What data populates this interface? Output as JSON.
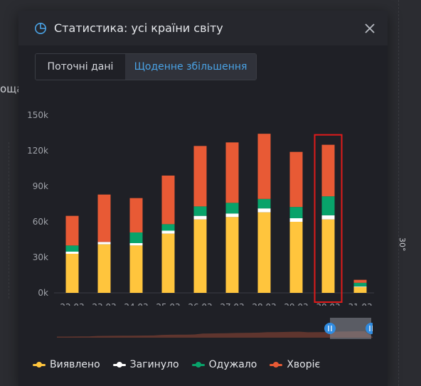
{
  "modal": {
    "title": "Статистика: усі країни світу",
    "tabs": [
      {
        "label": "Поточні дані",
        "active": false
      },
      {
        "label": "Щоденне збільшення",
        "active": true
      }
    ]
  },
  "map_labels": {
    "left_fragment": "оща",
    "right_fragment": "30°"
  },
  "colors": {
    "detected": "#ffc53d",
    "died": "#ffffff",
    "recovered": "#08a36a",
    "sick": "#e85a35",
    "accent": "#4aa3e6",
    "highlight": "#e01b1b"
  },
  "chart_data": {
    "type": "bar",
    "stacked": true,
    "categories": [
      "22.03",
      "23.03",
      "24.03",
      "25.03",
      "26.03",
      "27.03",
      "28.03",
      "29.03",
      "30.03",
      "31.03"
    ],
    "series": [
      {
        "name": "Виявлено",
        "color": "#ffc53d",
        "values": [
          33000,
          41000,
          40000,
          50000,
          62000,
          64000,
          68000,
          60000,
          62000,
          5000
        ]
      },
      {
        "name": "Загинуло",
        "color": "#ffffff",
        "values": [
          1800,
          2000,
          2000,
          2500,
          3000,
          3000,
          3300,
          3000,
          3500,
          500
        ]
      },
      {
        "name": "Одужало",
        "color": "#08a36a",
        "values": [
          5200,
          0,
          9000,
          5500,
          8000,
          9000,
          8000,
          9500,
          16000,
          3000
        ]
      },
      {
        "name": "Хворіє",
        "color": "#e85a35",
        "values": [
          25000,
          40000,
          29000,
          41000,
          51000,
          51000,
          55000,
          46500,
          43500,
          2500
        ]
      }
    ],
    "y_ticks": [
      "0k",
      "30k",
      "60k",
      "90k",
      "120k",
      "150k"
    ],
    "ylim": [
      0,
      150000
    ],
    "highlighted_category": "30.03",
    "legend_position": "bottom-left",
    "grid": false
  },
  "legend": [
    {
      "label": "Виявлено",
      "color": "#ffc53d"
    },
    {
      "label": "Загинуло",
      "color": "#ffffff"
    },
    {
      "label": "Одужало",
      "color": "#08a36a"
    },
    {
      "label": "Хворіє",
      "color": "#e85a35"
    }
  ]
}
